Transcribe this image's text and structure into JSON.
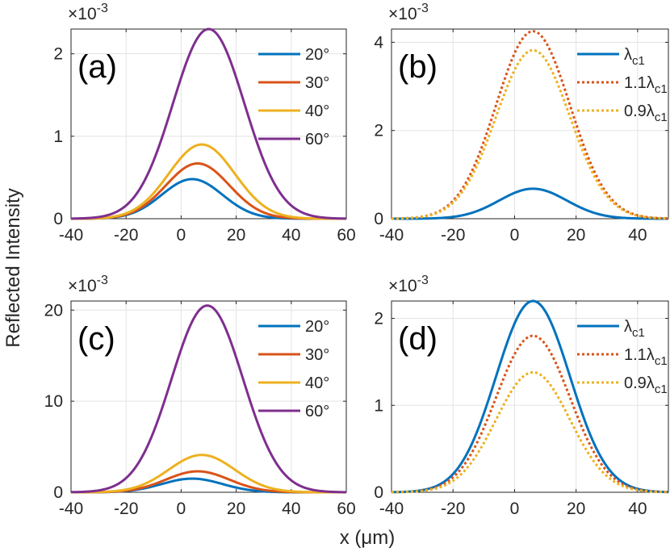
{
  "figure": {
    "ylabel": "Reflected Intensity",
    "xlabel": "x (μm)"
  },
  "colors": {
    "blue": "#0072BD",
    "orange": "#D95319",
    "yellow": "#EDB120",
    "purple": "#7E2F8E",
    "grid": "#e3e3e3",
    "axis": "#262626"
  },
  "chart_data": [
    {
      "panel": "(a)",
      "type": "line",
      "multiplier": "×10",
      "exponent": "-3",
      "xlim": [
        -40,
        60
      ],
      "ylim": [
        0,
        2.3
      ],
      "xticks": [
        -40,
        -20,
        0,
        20,
        40,
        60
      ],
      "xtick_labels": [
        "-40",
        "-20",
        "0",
        "20",
        "40",
        "60"
      ],
      "yticks": [
        0,
        1,
        2
      ],
      "ytick_labels": [
        "0",
        "1",
        "2"
      ],
      "legend_position": "top-right",
      "series": [
        {
          "name": "20°",
          "color": "#0072BD",
          "style": "solid",
          "peak_x": 4,
          "peak_y": 0.48,
          "width": 11
        },
        {
          "name": "30°",
          "color": "#D95319",
          "style": "solid",
          "peak_x": 6,
          "peak_y": 0.67,
          "width": 11.5
        },
        {
          "name": "40°",
          "color": "#EDB120",
          "style": "solid",
          "peak_x": 7.5,
          "peak_y": 0.9,
          "width": 12
        },
        {
          "name": "60°",
          "color": "#7E2F8E",
          "style": "solid",
          "peak_x": 10,
          "peak_y": 2.3,
          "width": 13
        }
      ]
    },
    {
      "panel": "(b)",
      "type": "line",
      "multiplier": "×10",
      "exponent": "-3",
      "xlim": [
        -40,
        50
      ],
      "ylim": [
        0,
        4.3
      ],
      "xticks": [
        -40,
        -20,
        0,
        20,
        40
      ],
      "xtick_labels": [
        "-40",
        "-20",
        "0",
        "20",
        "40"
      ],
      "yticks": [
        0,
        2,
        4
      ],
      "ytick_labels": [
        "0",
        "2",
        "4"
      ],
      "legend_position": "top-right",
      "series": [
        {
          "name": "λ",
          "sub": "c1",
          "color": "#0072BD",
          "style": "solid",
          "peak_x": 6,
          "peak_y": 0.68,
          "width": 11
        },
        {
          "name": "1.1λ",
          "sub": "c1",
          "color": "#D95319",
          "style": "dotted",
          "peak_x": 6,
          "peak_y": 4.25,
          "width": 12
        },
        {
          "name": "0.9λ",
          "sub": "c1",
          "color": "#EDB120",
          "style": "dotted",
          "peak_x": 6,
          "peak_y": 3.82,
          "width": 12
        }
      ]
    },
    {
      "panel": "(c)",
      "type": "line",
      "multiplier": "×10",
      "exponent": "-3",
      "xlim": [
        -40,
        60
      ],
      "ylim": [
        0,
        21
      ],
      "xticks": [
        -40,
        -20,
        0,
        20,
        40,
        60
      ],
      "xtick_labels": [
        "-40",
        "-20",
        "0",
        "20",
        "40",
        "60"
      ],
      "yticks": [
        0,
        10,
        20
      ],
      "ytick_labels": [
        "0",
        "10",
        "20"
      ],
      "legend_position": "top-right",
      "series": [
        {
          "name": "20°",
          "color": "#0072BD",
          "style": "solid",
          "peak_x": 4,
          "peak_y": 1.5,
          "width": 11
        },
        {
          "name": "30°",
          "color": "#D95319",
          "style": "solid",
          "peak_x": 6,
          "peak_y": 2.3,
          "width": 11.5
        },
        {
          "name": "40°",
          "color": "#EDB120",
          "style": "solid",
          "peak_x": 7.5,
          "peak_y": 4.1,
          "width": 12
        },
        {
          "name": "60°",
          "color": "#7E2F8E",
          "style": "solid",
          "peak_x": 9.5,
          "peak_y": 20.5,
          "width": 13
        }
      ]
    },
    {
      "panel": "(d)",
      "type": "line",
      "multiplier": "×10",
      "exponent": "-3",
      "xlim": [
        -40,
        50
      ],
      "ylim": [
        0,
        2.2
      ],
      "xticks": [
        -40,
        -20,
        0,
        20,
        40
      ],
      "xtick_labels": [
        "-40",
        "-20",
        "0",
        "20",
        "40"
      ],
      "yticks": [
        0,
        1,
        2
      ],
      "ytick_labels": [
        "0",
        "1",
        "2"
      ],
      "legend_position": "top-right",
      "series": [
        {
          "name": "λ",
          "sub": "c1",
          "color": "#0072BD",
          "style": "solid",
          "peak_x": 6,
          "peak_y": 2.2,
          "width": 12
        },
        {
          "name": "1.1λ",
          "sub": "c1",
          "color": "#D95319",
          "style": "dotted",
          "peak_x": 6,
          "peak_y": 1.8,
          "width": 12
        },
        {
          "name": "0.9λ",
          "sub": "c1",
          "color": "#EDB120",
          "style": "dotted",
          "peak_x": 6,
          "peak_y": 1.38,
          "width": 12
        }
      ]
    }
  ]
}
